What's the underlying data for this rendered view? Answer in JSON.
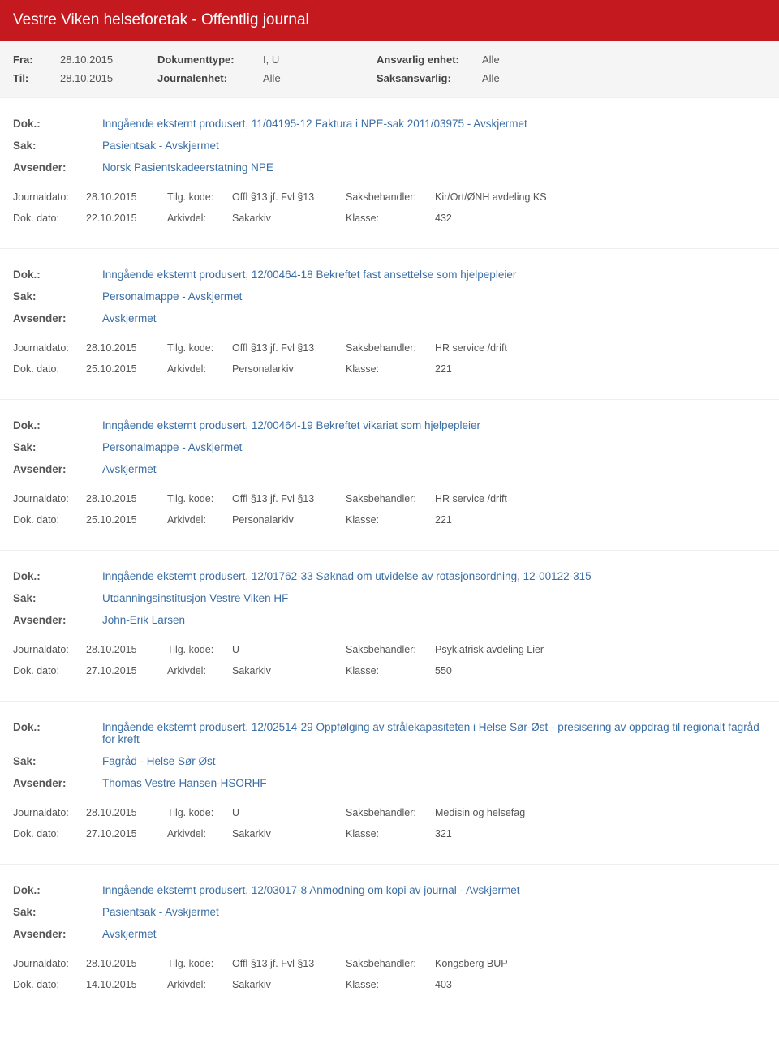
{
  "header": {
    "title": "Vestre Viken helseforetak - Offentlig journal",
    "fra_label": "Fra:",
    "fra_value": "28.10.2015",
    "til_label": "Til:",
    "til_value": "28.10.2015",
    "doktype_label": "Dokumenttype:",
    "doktype_value": "I, U",
    "journalenhet_label": "Journalenhet:",
    "journalenhet_value": "Alle",
    "ansvarlig_label": "Ansvarlig enhet:",
    "ansvarlig_value": "Alle",
    "saksansvarlig_label": "Saksansvarlig:",
    "saksansvarlig_value": "Alle"
  },
  "labels": {
    "dok": "Dok.:",
    "sak": "Sak:",
    "avsender": "Avsender:",
    "journaldato": "Journaldato:",
    "dokdato": "Dok. dato:",
    "tilgkode": "Tilg. kode:",
    "arkivdel": "Arkivdel:",
    "saksbehandler": "Saksbehandler:",
    "klasse": "Klasse:"
  },
  "entries": [
    {
      "dok": "Inngående eksternt produsert, 11/04195-12 Faktura i NPE-sak 2011/03975 - Avskjermet",
      "sak": "Pasientsak - Avskjermet",
      "avsender": "Norsk Pasientskadeerstatning NPE",
      "journaldato": "28.10.2015",
      "dokdato": "22.10.2015",
      "tilgkode": "Offl §13 jf. Fvl §13",
      "arkivdel": "Sakarkiv",
      "saksbehandler": "Kir/Ort/ØNH avdeling KS",
      "klasse": "432"
    },
    {
      "dok": "Inngående eksternt produsert, 12/00464-18 Bekreftet fast ansettelse som hjelpepleier",
      "sak": "Personalmappe - Avskjermet",
      "avsender": "Avskjermet",
      "journaldato": "28.10.2015",
      "dokdato": "25.10.2015",
      "tilgkode": "Offl §13 jf. Fvl §13",
      "arkivdel": "Personalarkiv",
      "saksbehandler": "HR service /drift",
      "klasse": "221"
    },
    {
      "dok": "Inngående eksternt produsert, 12/00464-19 Bekreftet vikariat som hjelpepleier",
      "sak": "Personalmappe - Avskjermet",
      "avsender": "Avskjermet",
      "journaldato": "28.10.2015",
      "dokdato": "25.10.2015",
      "tilgkode": "Offl §13 jf. Fvl §13",
      "arkivdel": "Personalarkiv",
      "saksbehandler": "HR service /drift",
      "klasse": "221"
    },
    {
      "dok": "Inngående eksternt produsert, 12/01762-33 Søknad om utvidelse av rotasjonsordning, 12-00122-315",
      "sak": "Utdanningsinstitusjon Vestre Viken HF",
      "avsender": "John-Erik Larsen",
      "journaldato": "28.10.2015",
      "dokdato": "27.10.2015",
      "tilgkode": "U",
      "arkivdel": "Sakarkiv",
      "saksbehandler": "Psykiatrisk avdeling Lier",
      "klasse": "550"
    },
    {
      "dok": "Inngående eksternt produsert, 12/02514-29 Oppfølging av strålekapasiteten i Helse Sør-Øst - presisering av oppdrag til regionalt fagråd for kreft",
      "sak": "Fagråd - Helse Sør Øst",
      "avsender": "Thomas Vestre Hansen-HSORHF",
      "journaldato": "28.10.2015",
      "dokdato": "27.10.2015",
      "tilgkode": "U",
      "arkivdel": "Sakarkiv",
      "saksbehandler": "Medisin og helsefag",
      "klasse": "321"
    },
    {
      "dok": "Inngående eksternt produsert, 12/03017-8 Anmodning om kopi av journal - Avskjermet",
      "sak": "Pasientsak - Avskjermet",
      "avsender": "Avskjermet",
      "journaldato": "28.10.2015",
      "dokdato": "14.10.2015",
      "tilgkode": "Offl §13 jf. Fvl §13",
      "arkivdel": "Sakarkiv",
      "saksbehandler": "Kongsberg BUP",
      "klasse": "403"
    }
  ]
}
